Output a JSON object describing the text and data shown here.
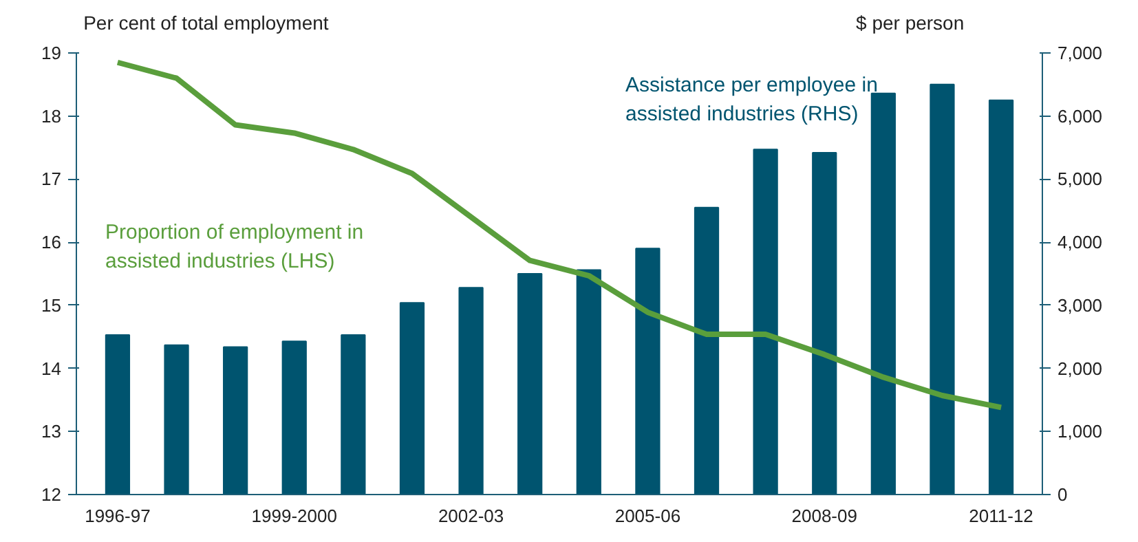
{
  "chart_data": {
    "type": "bar",
    "categories": [
      "1996-97",
      null,
      null,
      "1999-2000",
      null,
      null,
      "2002-03",
      null,
      null,
      "2005-06",
      null,
      null,
      "2008-09",
      null,
      null,
      "2011-12"
    ],
    "series": [
      {
        "name": "Assistance per employee in assisted industries (RHS)",
        "axis": "y2",
        "color": "#00546f",
        "values": [
          2530,
          2370,
          2340,
          2430,
          2530,
          3040,
          3280,
          3500,
          3560,
          3900,
          4550,
          5470,
          5420,
          6360,
          6500,
          6250
        ]
      },
      {
        "name": "Proportion of employment in assisted industries (LHS)",
        "type": "line",
        "color": "#5a9e3c",
        "values": [
          18.85,
          18.6,
          17.86,
          17.73,
          17.47,
          17.09,
          16.4,
          15.71,
          15.47,
          14.89,
          14.54,
          14.54,
          14.22,
          13.86,
          13.57,
          13.38
        ]
      }
    ],
    "ylabel": "Per cent of total employment",
    "y2label": "$ per person",
    "ylim": [
      12,
      19
    ],
    "yticks": [
      12,
      13,
      14,
      15,
      16,
      17,
      18,
      19
    ],
    "y2lim": [
      0,
      7000
    ],
    "y2ticks": [
      {
        "value": 0,
        "label": "0"
      },
      {
        "value": 1000,
        "label": "1,000"
      },
      {
        "value": 2000,
        "label": "2,000"
      },
      {
        "value": 3000,
        "label": "3,000"
      },
      {
        "value": 4000,
        "label": "4,000"
      },
      {
        "value": 5000,
        "label": "5,000"
      },
      {
        "value": 6000,
        "label": "6,000"
      },
      {
        "value": 7000,
        "label": "7,000"
      }
    ],
    "grid": false,
    "legend": false,
    "line_style": "solid"
  }
}
